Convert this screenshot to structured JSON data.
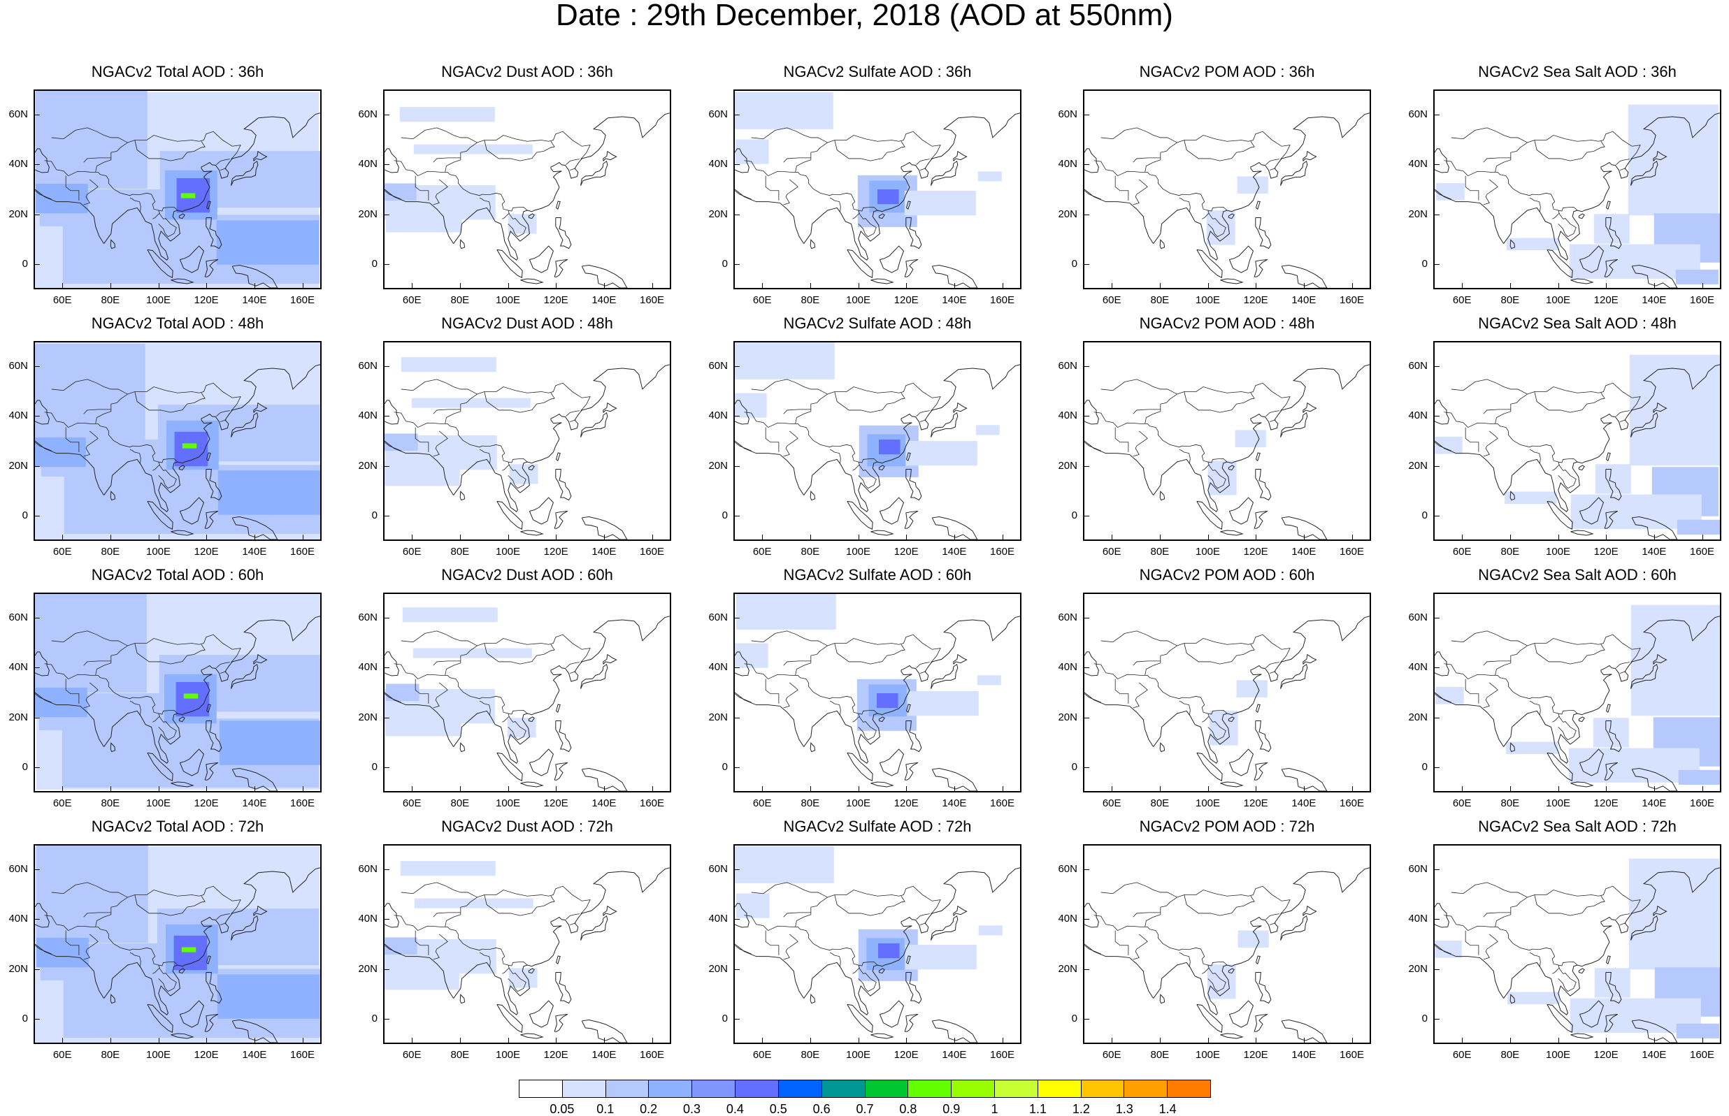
{
  "title": "Date : 29th December, 2018 (AOD at 550nm)",
  "lat_labels": [
    "60N",
    "40N",
    "20N",
    "0"
  ],
  "lon_labels": [
    "60E",
    "80E",
    "100E",
    "120E",
    "140E",
    "160E"
  ],
  "rows": [
    {
      "hour": "36h",
      "titles": [
        "NGACv2 Total AOD : 36h",
        "NGACv2 Dust AOD : 36h",
        "NGACv2 Sulfate AOD : 36h",
        "NGACv2 POM AOD : 36h",
        "NGACv2 Sea Salt AOD : 36h"
      ]
    },
    {
      "hour": "48h",
      "titles": [
        "NGACv2 Total AOD : 48h",
        "NGACv2 Dust AOD : 48h",
        "NGACv2 Sulfate AOD : 48h",
        "NGACv2 POM AOD : 48h",
        "NGACv2 Sea Salt AOD : 48h"
      ]
    },
    {
      "hour": "60h",
      "titles": [
        "NGACv2 Total AOD : 60h",
        "NGACv2 Dust AOD : 60h",
        "NGACv2 Sulfate AOD : 60h",
        "NGACv2 POM AOD : 60h",
        "NGACv2 Sea Salt AOD : 60h"
      ]
    },
    {
      "hour": "72h",
      "titles": [
        "NGACv2 Total AOD : 72h",
        "NGACv2 Dust AOD : 72h",
        "NGACv2 Sulfate AOD : 72h",
        "NGACv2 POM AOD : 72h",
        "NGACv2 Sea Salt  AOD : 72h"
      ]
    }
  ],
  "colorbar": {
    "labels": [
      "0.05",
      "0.1",
      "0.2",
      "0.3",
      "0.4",
      "0.5",
      "0.6",
      "0.7",
      "0.8",
      "0.9",
      "1",
      "1.1",
      "1.2",
      "1.3",
      "1.4"
    ],
    "colors": [
      "#ffffff",
      "#d6e2ff",
      "#b5c9ff",
      "#8eb2ff",
      "#7f96ff",
      "#6370ff",
      "#0063ff",
      "#009696",
      "#00c633",
      "#63ff00",
      "#96ff00",
      "#c6ff33",
      "#ffff00",
      "#ffc600",
      "#ffa000",
      "#ff7c00",
      "#ff1900"
    ]
  },
  "map_colors": {
    "light": "#d6e2ff",
    "medium": "#b5c9ff",
    "strong": "#8eb2ff",
    "deep": "#6370ff",
    "green": "#63ff00",
    "coast": "#222222"
  }
}
